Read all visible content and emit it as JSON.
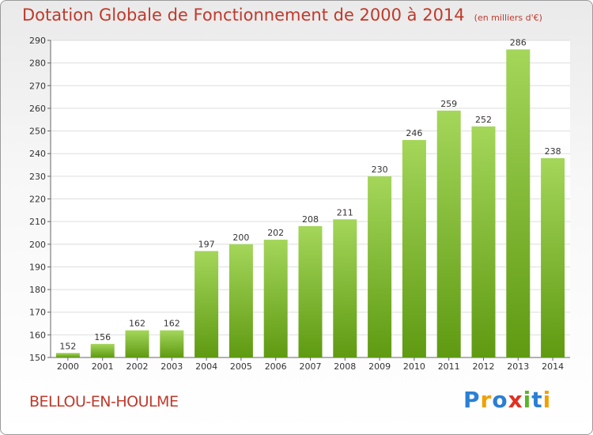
{
  "chart_data": {
    "type": "bar",
    "title": "Dotation Globale de Fonctionnement de 2000 à 2014",
    "subtitle": "(en milliers d'€)",
    "categories": [
      "2000",
      "2001",
      "2002",
      "2003",
      "2004",
      "2005",
      "2006",
      "2007",
      "2008",
      "2009",
      "2010",
      "2011",
      "2012",
      "2013",
      "2014"
    ],
    "values": [
      152,
      156,
      162,
      162,
      197,
      200,
      202,
      208,
      211,
      230,
      246,
      259,
      252,
      286,
      238
    ],
    "value_labels": [
      "152",
      "156",
      "162",
      "162",
      "197",
      "200",
      "202",
      "208",
      "211",
      "230",
      "246",
      "259",
      "252",
      "286",
      "238"
    ],
    "ylim": [
      150,
      290
    ],
    "yticks": [
      "150",
      "160",
      "170",
      "180",
      "190",
      "200",
      "210",
      "220",
      "230",
      "240",
      "250",
      "260",
      "270",
      "280",
      "290"
    ],
    "xlabel": "",
    "ylabel": "",
    "grid": true,
    "bar_color": "#7fb92e"
  },
  "commune": "BELLOU-EN-HOULME",
  "logo": {
    "text": "Proxiti",
    "letters": [
      "P",
      "r",
      "o",
      "x",
      "i",
      "t",
      "i"
    ],
    "colors": [
      "#2a7fd4",
      "#f0a000",
      "#2a7fd4",
      "#e03020",
      "#5ab52a",
      "#2a7fd4",
      "#f0a000"
    ]
  }
}
